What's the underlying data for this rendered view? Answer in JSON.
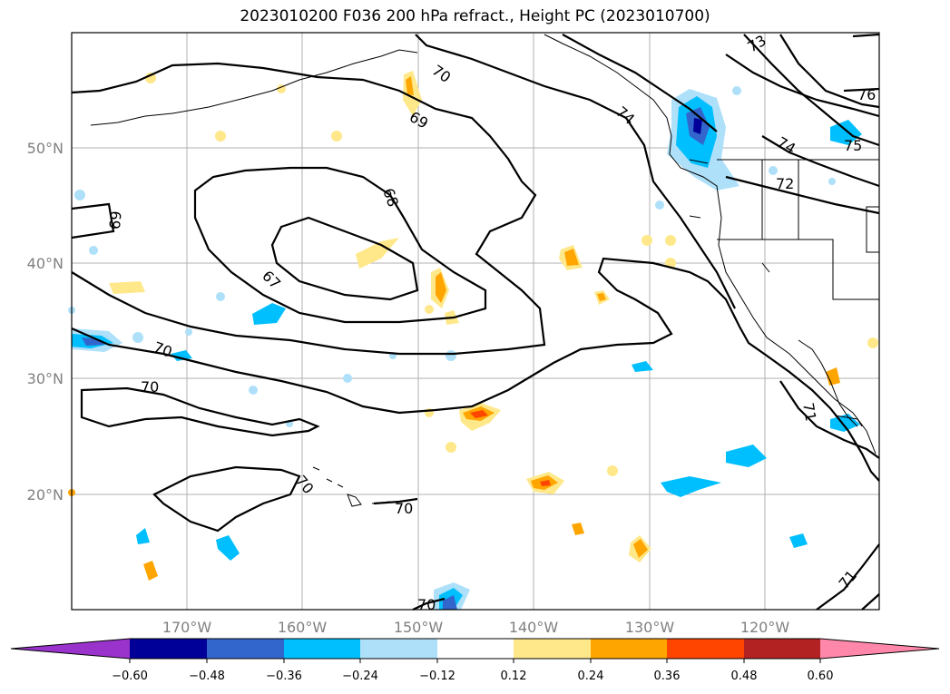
{
  "title": "2023010200 F036 200 hPa refract., Height PC (2023010700)",
  "map": {
    "lon_labels": [
      "170°W",
      "160°W",
      "150°W",
      "140°W",
      "130°W",
      "120°W"
    ],
    "lat_labels": [
      "50°N",
      "40°N",
      "30°N",
      "20°N"
    ],
    "contour_labels": [
      "70",
      "69",
      "68",
      "67",
      "69",
      "70",
      "70",
      "70",
      "70",
      "70",
      "73",
      "74",
      "74",
      "72",
      "75",
      "76",
      "71",
      "71"
    ]
  },
  "colorbar": {
    "tick_labels": [
      "−0.60",
      "−0.48",
      "−0.36",
      "−0.24",
      "−0.12",
      "0.12",
      "0.24",
      "0.36",
      "0.48",
      "0.60"
    ],
    "colors": [
      "#9933cc",
      "#000099",
      "#3366cc",
      "#00bfff",
      "#aee0fa",
      "#ffffff",
      "#ffe88a",
      "#ffa500",
      "#ff4500",
      "#b22222",
      "#ff88aa"
    ]
  }
}
